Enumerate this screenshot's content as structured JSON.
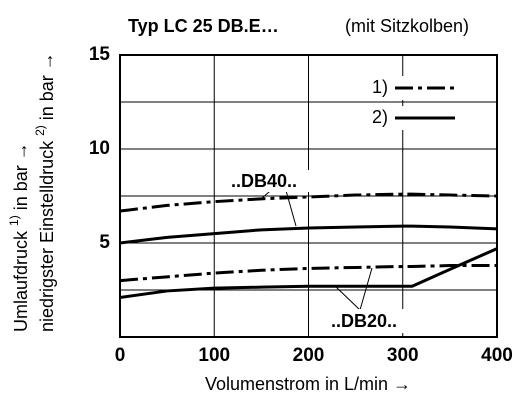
{
  "chart_data": {
    "type": "line",
    "title": "Typ LC 25 DB.E…",
    "subtitle": "(mit Sitzkolben)",
    "xlabel": "Volumenstrom in L/min →",
    "ylabel_lines": [
      [
        "Umlaufdruck ",
        "1)",
        " in bar →"
      ],
      [
        "niedrigster Einstelldruck ",
        "2)",
        " in bar →"
      ]
    ],
    "x": [
      0,
      50,
      100,
      150,
      200,
      250,
      300,
      310,
      350,
      400
    ],
    "series": [
      {
        "name": "1)",
        "color": "#000000",
        "dash": "dashdot",
        "values": [
          6.7,
          7.0,
          7.2,
          7.35,
          7.45,
          7.55,
          7.6,
          7.6,
          7.55,
          7.5
        ]
      },
      {
        "name": "2)",
        "color": "#000000",
        "dash": "solid",
        "values": [
          5.0,
          5.3,
          5.5,
          5.7,
          5.8,
          5.85,
          5.9,
          5.9,
          5.85,
          5.75
        ]
      },
      {
        "color": "#000000",
        "dash": "dashdot",
        "values": [
          3.0,
          3.2,
          3.4,
          3.55,
          3.65,
          3.7,
          3.75,
          3.75,
          3.8,
          3.8
        ]
      },
      {
        "color": "#000000",
        "dash": "solid",
        "values": [
          2.1,
          2.45,
          2.6,
          2.65,
          2.7,
          2.7,
          2.7,
          2.7,
          3.6,
          4.7
        ]
      }
    ],
    "annotations": [
      "..DB40..",
      "..DB20.."
    ],
    "xlim": [
      0,
      400
    ],
    "xticks": [
      0,
      100,
      200,
      300,
      400
    ],
    "ylim": [
      0,
      15
    ],
    "yticks": [
      5,
      10,
      15
    ],
    "y_minor_grid": [
      2.5,
      7.5,
      12.5
    ],
    "grid": true
  }
}
